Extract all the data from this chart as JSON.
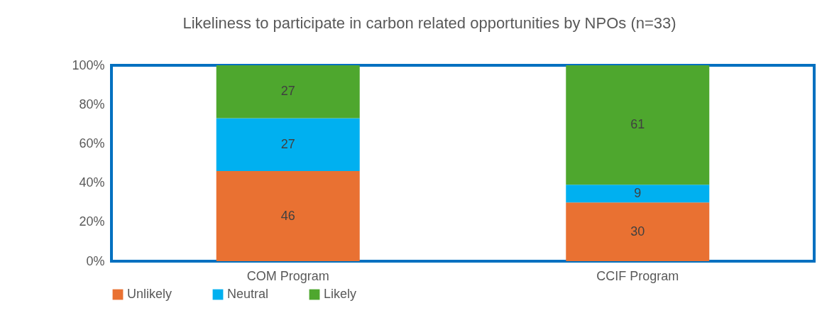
{
  "chart_data": {
    "type": "bar",
    "title": "Likeliness to participate in carbon related opportunities by NPOs (n=33)",
    "categories": [
      "COM Program",
      "CCIF Program"
    ],
    "stacked": true,
    "data_labels": true,
    "legend": "bottom",
    "grid": false,
    "series": [
      {
        "name": "Unlikely",
        "color": "#e97132",
        "values": [
          46,
          30
        ]
      },
      {
        "name": "Neutral",
        "color": "#00b0f0",
        "values": [
          27,
          9
        ]
      },
      {
        "name": "Likely",
        "color": "#4ea72e",
        "values": [
          27,
          61
        ]
      }
    ],
    "ylim": [
      0,
      100
    ],
    "yticks": [
      {
        "value": 0,
        "label": "0%"
      },
      {
        "value": 20,
        "label": "20%"
      },
      {
        "value": 40,
        "label": "40%"
      },
      {
        "value": 60,
        "label": "60%"
      },
      {
        "value": 80,
        "label": "80%"
      },
      {
        "value": 100,
        "label": "100%"
      }
    ]
  }
}
